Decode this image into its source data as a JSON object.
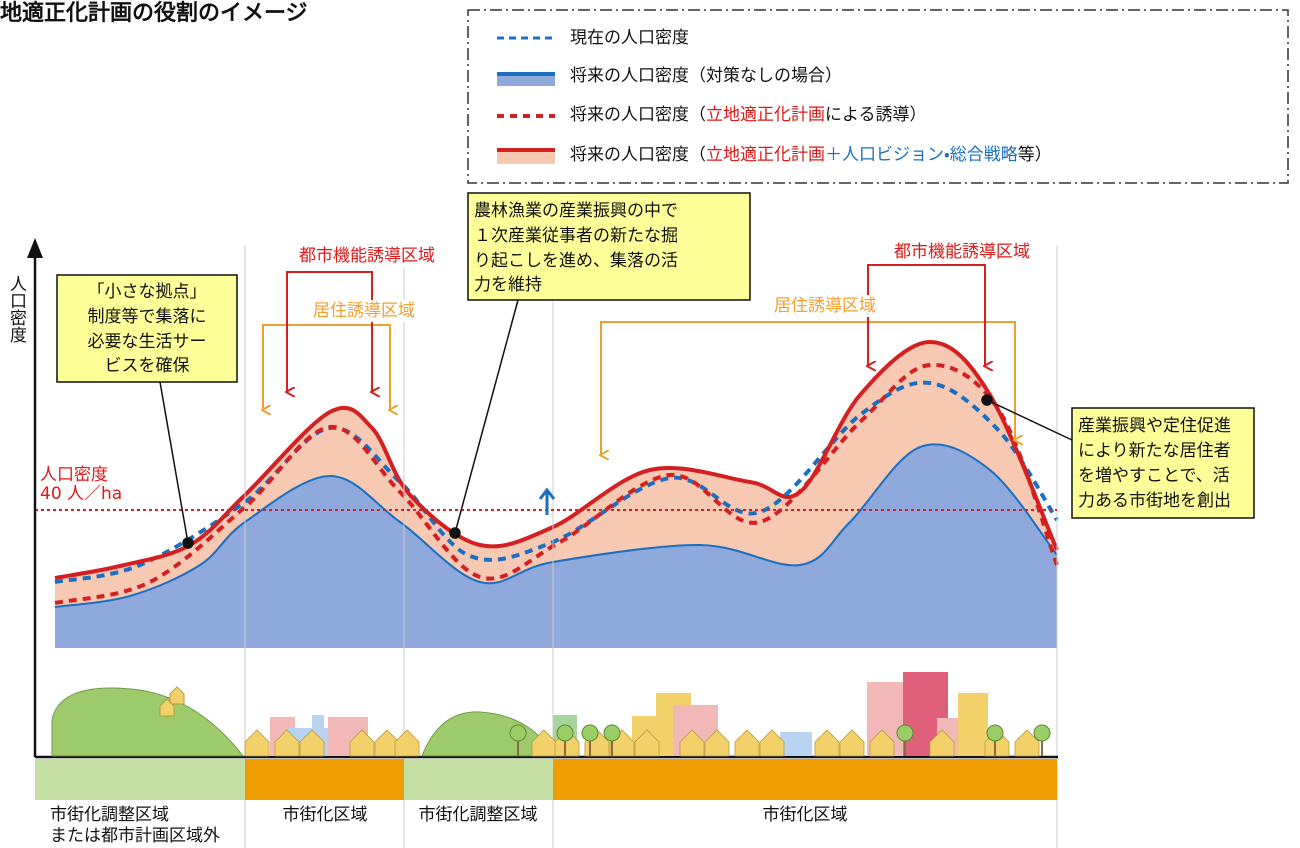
{
  "header": {
    "title": "地適正化計画の役割のイメージ"
  },
  "legend": [
    {
      "parts": [
        "現在の人口密度"
      ]
    },
    {
      "parts": [
        "将来の人口密度（対策なしの場合）"
      ]
    },
    {
      "parts": [
        "将来の人口密度（",
        "立地適正化計画",
        "による誘導）"
      ]
    },
    {
      "parts": [
        "将来の人口密度（",
        "立地適正化計画",
        "＋",
        "人口ビジョン・総合戦略",
        "等）"
      ]
    }
  ],
  "axis_label": "人口密度",
  "threshold": [
    "人口密度",
    "40 人／ha"
  ],
  "areas": {
    "urban_function_left": "都市機能誘導区域",
    "residential_left": "居住誘導区域",
    "urban_function_right": "都市機能誘導区域",
    "residential_right": "居住誘導区域"
  },
  "callouts": [
    [
      "「小さな拠点」",
      "制度等で集落に",
      "必要な生活サー",
      "ビスを確保"
    ],
    [
      "農林漁業の産業振興の中で",
      "１次産業従事者の新たな掘",
      "り起こしを進め、集落の活",
      "力を維持"
    ],
    [
      "産業振興や定住促進",
      "により新たな居住者",
      "を増やすことで、活",
      "力ある市街地を創出"
    ]
  ],
  "zones": [
    [
      "市街化調整区域",
      "または都市計画区域外"
    ],
    [
      "市街化区域"
    ],
    [
      "市街化調整区域"
    ],
    [
      "市街化区域"
    ]
  ]
}
